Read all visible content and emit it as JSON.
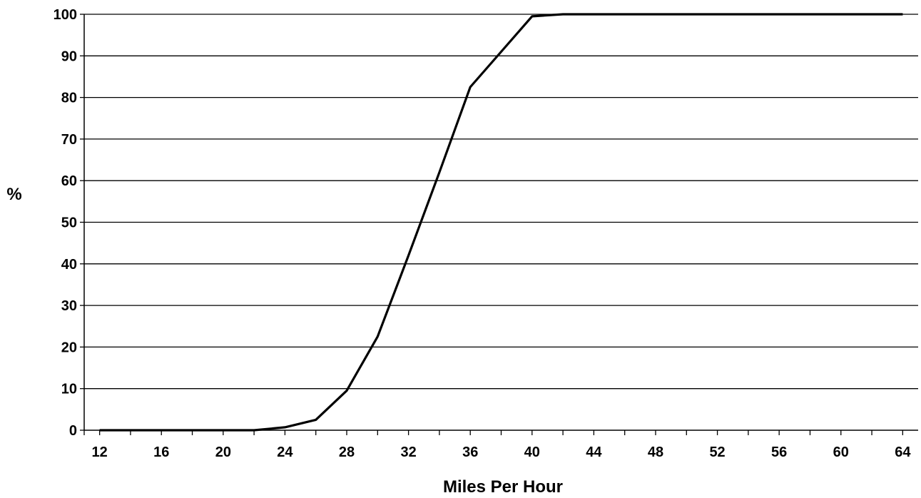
{
  "chart_data": {
    "type": "line",
    "title": "",
    "xlabel": "Miles Per Hour",
    "ylabel": "%",
    "xlim": [
      11,
      65
    ],
    "ylim": [
      0,
      100
    ],
    "xticks": [
      12,
      16,
      20,
      24,
      28,
      32,
      36,
      40,
      44,
      48,
      52,
      56,
      60,
      64
    ],
    "yticks": [
      0,
      10,
      20,
      30,
      40,
      50,
      60,
      70,
      80,
      90,
      100
    ],
    "grid": "horizontal",
    "legend": "none",
    "line_color": "#000000",
    "series": [
      {
        "x": [
          12,
          14,
          16,
          18,
          20,
          22,
          24,
          26,
          28,
          30,
          32,
          34,
          36,
          38,
          40,
          42,
          44,
          46,
          48,
          50,
          52,
          54,
          56,
          58,
          60,
          62,
          64
        ],
        "y": [
          0,
          0,
          0,
          0,
          0,
          0,
          0.7,
          2.5,
          9.5,
          22.5,
          42,
          62,
          82.5,
          91,
          99.5,
          100,
          100,
          100,
          100,
          100,
          100,
          100,
          100,
          100,
          100,
          100,
          100
        ]
      }
    ]
  }
}
